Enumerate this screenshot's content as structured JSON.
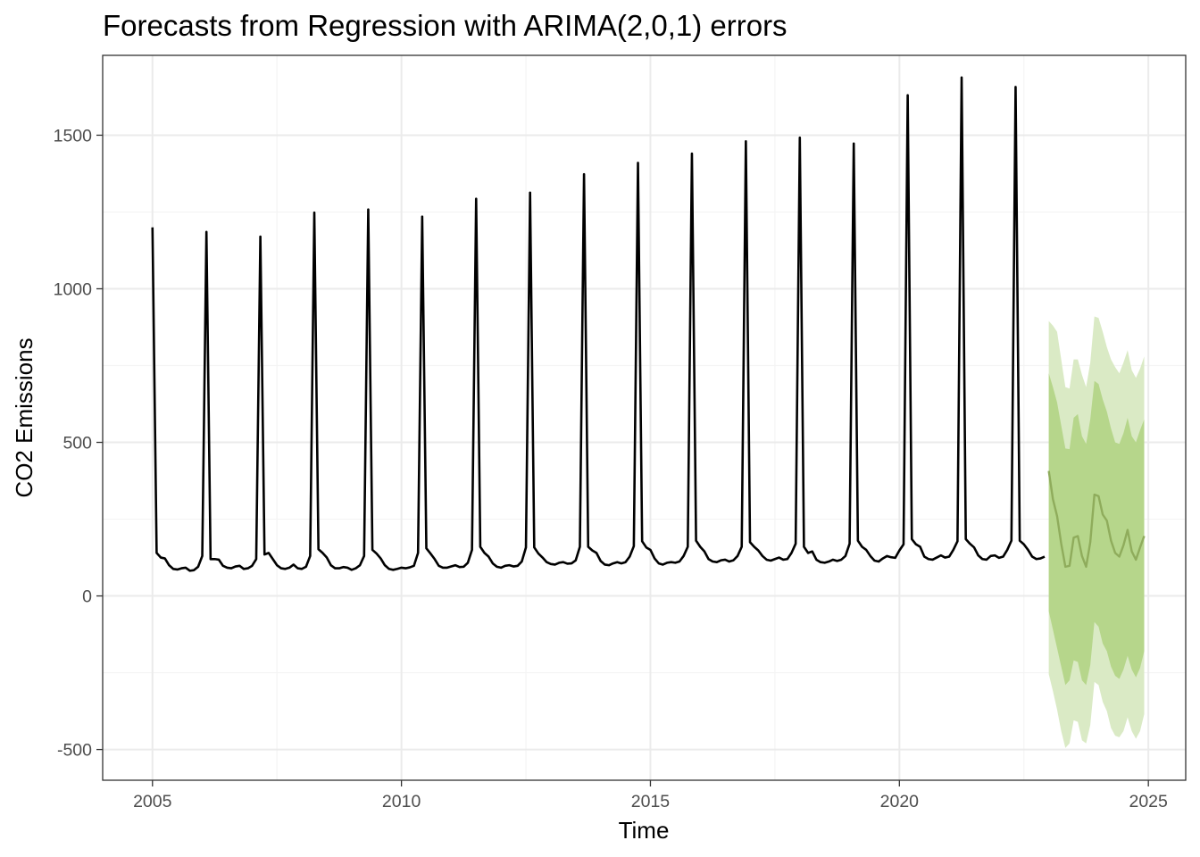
{
  "chart_data": {
    "type": "line",
    "title": "Forecasts from Regression with ARIMA(2,0,1) errors",
    "xlabel": "Time",
    "ylabel": "CO2 Emissions",
    "xlim": [
      2004.0,
      2025.75
    ],
    "ylim": [
      -600,
      1760
    ],
    "x_ticks": [
      2005,
      2010,
      2015,
      2020,
      2025
    ],
    "x_tick_labels": [
      "2005",
      "2010",
      "2015",
      "2020",
      "2025"
    ],
    "y_ticks": [
      -500,
      0,
      500,
      1000,
      1500
    ],
    "y_tick_labels": [
      "-500",
      "0",
      "500",
      "1000",
      "1500"
    ],
    "grid": true,
    "frequency": 12,
    "colors": {
      "actual": "#000000",
      "forecast_line": "#8fac5c",
      "band_80": "#b6d68b",
      "band_95": "#daeac5",
      "grid_major": "#ebebeb",
      "grid_minor": "#f4f4f4",
      "panel_border": "#333333"
    },
    "series": [
      {
        "start": 2005.0,
        "values": [
          1200,
          140,
          125,
          122,
          100,
          88,
          86,
          90,
          92,
          82,
          84,
          95,
          130,
          1185,
          120,
          120,
          118,
          98,
          92,
          90,
          96,
          98,
          88,
          90,
          98,
          120,
          1170,
          135,
          140,
          120,
          100,
          90,
          88,
          92,
          102,
          90,
          88,
          95,
          130,
          1248,
          152,
          140,
          125,
          100,
          90,
          90,
          94,
          92,
          85,
          90,
          100,
          130,
          1258,
          150,
          138,
          122,
          100,
          88,
          85,
          88,
          92,
          90,
          93,
          98,
          140,
          1235,
          155,
          138,
          120,
          98,
          92,
          92,
          96,
          100,
          94,
          95,
          108,
          150,
          1293,
          160,
          140,
          128,
          106,
          95,
          92,
          98,
          100,
          96,
          98,
          112,
          158,
          1313,
          158,
          138,
          125,
          110,
          104,
          102,
          108,
          110,
          105,
          106,
          116,
          160,
          1373,
          160,
          148,
          140,
          114,
          102,
          100,
          106,
          110,
          106,
          110,
          128,
          162,
          1410,
          178,
          158,
          150,
          122,
          106,
          102,
          108,
          110,
          108,
          112,
          130,
          160,
          1440,
          180,
          160,
          145,
          120,
          112,
          110,
          116,
          118,
          112,
          116,
          130,
          160,
          1480,
          175,
          160,
          148,
          130,
          118,
          115,
          120,
          125,
          118,
          120,
          140,
          170,
          1492,
          160,
          140,
          145,
          118,
          110,
          108,
          112,
          118,
          114,
          118,
          130,
          170,
          1473,
          180,
          160,
          150,
          130,
          115,
          112,
          122,
          130,
          126,
          124,
          148,
          168,
          1630,
          185,
          168,
          160,
          128,
          120,
          118,
          125,
          132,
          125,
          128,
          150,
          178,
          1688,
          185,
          170,
          158,
          132,
          120,
          118,
          130,
          132,
          124,
          128,
          150,
          180,
          1657,
          180,
          168,
          150,
          128,
          120,
          122,
          128
        ]
      },
      {
        "start": 2023.0,
        "values": [
          407,
          315,
          260,
          170,
          95,
          98,
          190,
          195,
          130,
          95,
          175,
          330,
          325,
          265,
          245,
          180,
          140,
          128,
          165,
          215,
          145,
          118,
          158,
          195
        ],
        "lo80": [
          -50,
          -110,
          -170,
          -230,
          -290,
          -275,
          -210,
          -215,
          -275,
          -290,
          -225,
          -85,
          -100,
          -155,
          -180,
          -230,
          -260,
          -270,
          -240,
          -195,
          -240,
          -265,
          -235,
          -180
        ],
        "hi80": [
          725,
          680,
          630,
          555,
          480,
          478,
          580,
          592,
          520,
          495,
          575,
          700,
          690,
          640,
          600,
          545,
          500,
          495,
          530,
          580,
          520,
          500,
          540,
          575
        ],
        "lo95": [
          -255,
          -310,
          -370,
          -440,
          -495,
          -480,
          -405,
          -410,
          -470,
          -480,
          -420,
          -280,
          -290,
          -345,
          -375,
          -430,
          -455,
          -460,
          -440,
          -395,
          -440,
          -465,
          -440,
          -385
        ],
        "hi95": [
          895,
          880,
          860,
          770,
          680,
          675,
          770,
          770,
          720,
          680,
          760,
          910,
          905,
          860,
          810,
          770,
          745,
          725,
          760,
          800,
          735,
          710,
          740,
          780
        ]
      }
    ]
  }
}
